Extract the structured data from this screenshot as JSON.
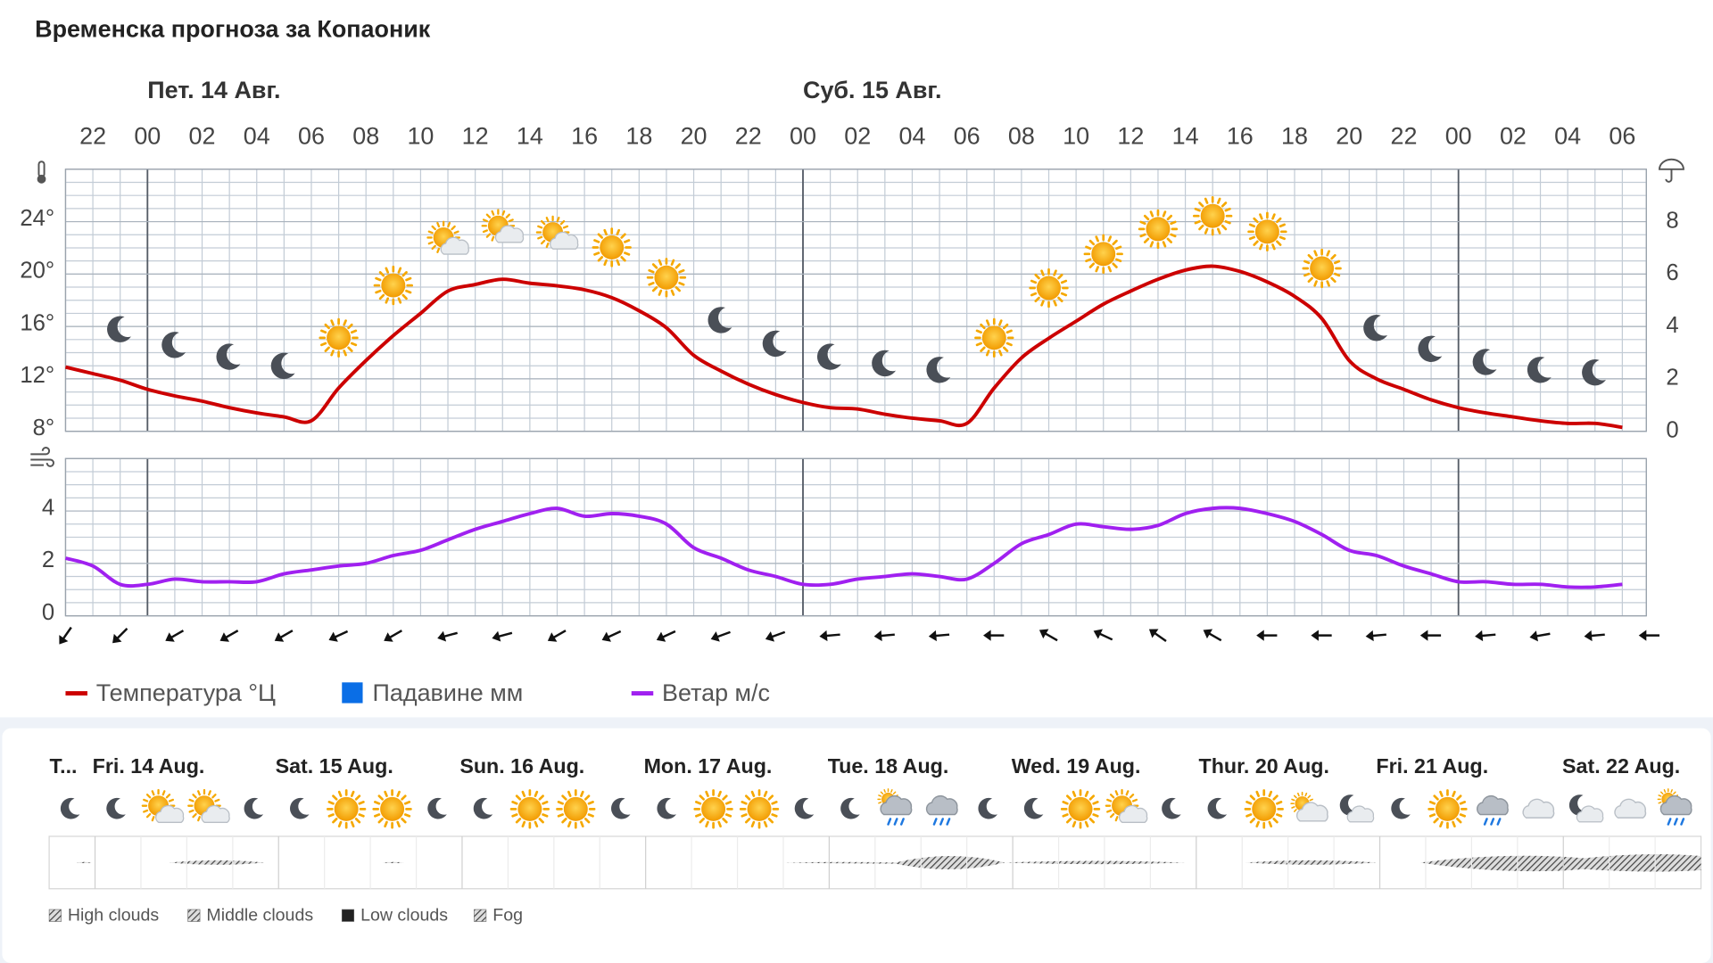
{
  "title": "Временска прогноза за Копаоник",
  "chart_data": [
    {
      "type": "line",
      "days": [
        "Пет. 14 Авг.",
        "Суб. 15 Авг."
      ],
      "categories": [
        null,
        "22",
        null,
        "00",
        null,
        "02",
        null,
        "04",
        null,
        "06",
        null,
        "08",
        null,
        "10",
        null,
        "12",
        null,
        "14",
        null,
        "16",
        null,
        "18",
        null,
        "20",
        null,
        "22",
        null,
        "00",
        null,
        "02",
        null,
        "04",
        null,
        "06",
        null,
        "08",
        null,
        "10",
        null,
        "12",
        null,
        "14",
        null,
        "16",
        null,
        "18",
        null,
        "20",
        null,
        "22",
        null,
        "00",
        null,
        "02",
        null,
        "04",
        null,
        "06"
      ],
      "ylim": [
        8,
        28
      ],
      "yticks": [
        {
          "value": 8,
          "label": "8°"
        },
        {
          "value": 12,
          "label": "12°"
        },
        {
          "value": 16,
          "label": "16°"
        },
        {
          "value": 20,
          "label": "20°"
        },
        {
          "value": 24,
          "label": "24°"
        }
      ],
      "y2lim": [
        0,
        10
      ],
      "y2ticks": [
        0,
        2,
        4,
        6,
        8
      ],
      "grid": true,
      "series": [
        {
          "name": "Температура °Ц",
          "color": "#cc0000",
          "values": [
            12.9,
            12.4,
            11.9,
            11.2,
            10.7,
            10.3,
            9.8,
            9.4,
            9.1,
            8.8,
            11.3,
            13.4,
            15.3,
            17.0,
            18.7,
            19.2,
            19.6,
            19.3,
            19.1,
            18.8,
            18.2,
            17.2,
            15.9,
            13.8,
            12.6,
            11.6,
            10.8,
            10.2,
            9.8,
            9.7,
            9.3,
            9.0,
            8.8,
            8.6,
            11.3,
            13.6,
            15.1,
            16.4,
            17.7,
            18.7,
            19.6,
            20.3,
            20.6,
            20.2,
            19.4,
            18.3,
            16.6,
            13.4,
            12.0,
            11.2,
            10.4,
            9.8,
            9.4,
            9.1,
            8.8,
            8.6,
            8.6,
            8.3
          ]
        },
        {
          "name": "Падавине мм",
          "color": "#0a6ee6",
          "axis": "y2",
          "values": [
            0,
            0,
            0,
            0,
            0,
            0,
            0,
            0,
            0,
            0,
            0,
            0,
            0,
            0,
            0,
            0,
            0,
            0,
            0,
            0,
            0,
            0,
            0,
            0,
            0,
            0,
            0,
            0,
            0,
            0,
            0,
            0,
            0,
            0,
            0,
            0,
            0,
            0,
            0,
            0,
            0,
            0,
            0,
            0,
            0,
            0,
            0,
            0,
            0,
            0,
            0,
            0,
            0,
            0,
            0,
            0,
            0,
            0
          ]
        }
      ]
    },
    {
      "type": "line",
      "ylim": [
        0,
        6
      ],
      "yticks": [
        0,
        2,
        4
      ],
      "grid": true,
      "series": [
        {
          "name": "Ветар м/с",
          "color": "#a020f0",
          "values": [
            2.2,
            1.9,
            1.2,
            1.2,
            1.4,
            1.3,
            1.3,
            1.3,
            1.6,
            1.75,
            1.9,
            2.0,
            2.3,
            2.5,
            2.9,
            3.3,
            3.6,
            3.9,
            4.1,
            3.8,
            3.9,
            3.8,
            3.5,
            2.6,
            2.2,
            1.75,
            1.5,
            1.2,
            1.2,
            1.4,
            1.5,
            1.6,
            1.5,
            1.4,
            2.0,
            2.75,
            3.1,
            3.5,
            3.4,
            3.3,
            3.45,
            3.9,
            4.1,
            4.1,
            3.9,
            3.6,
            3.1,
            2.5,
            2.3,
            1.9,
            1.6,
            1.3,
            1.3,
            1.2,
            1.2,
            1.1,
            1.1,
            1.2
          ]
        }
      ],
      "wind_direction": [
        215,
        225,
        240,
        240,
        240,
        245,
        240,
        255,
        255,
        240,
        245,
        245,
        250,
        250,
        265,
        265,
        265,
        270,
        300,
        295,
        305,
        300,
        270,
        270,
        265,
        270,
        265,
        260,
        265,
        270
      ]
    }
  ],
  "meteogram": {
    "days": [
      "T...",
      "Fri. 14 Aug.",
      "Sat. 15 Aug.",
      "Sun. 16 Aug.",
      "Mon. 17 Aug.",
      "Tue. 18 Aug.",
      "Wed. 19 Aug.",
      "Thur. 20 Aug.",
      "Fri. 21 Aug.",
      "Sat. 22 Aug."
    ],
    "legend": [
      "High clouds",
      "Middle clouds",
      "Low clouds",
      "Fog"
    ]
  }
}
